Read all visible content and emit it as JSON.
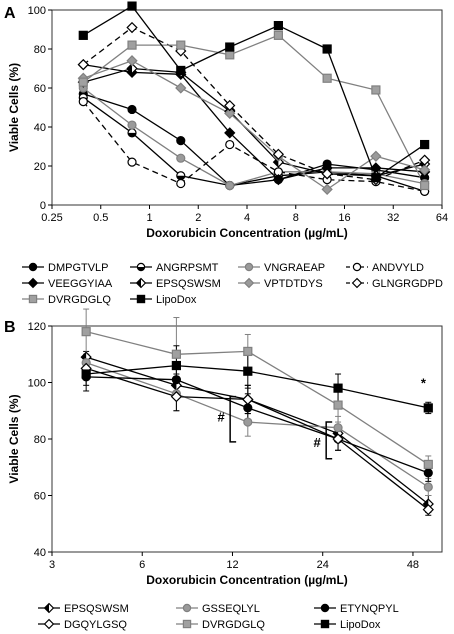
{
  "chart_data": [
    {
      "panel": "A",
      "type": "line",
      "xlabel": "Doxorubicin Concentration (µg/mL)",
      "ylabel": "Viable Cells (%)",
      "x_scale": "log2",
      "xlim": [
        0.25,
        64
      ],
      "ylim": [
        0,
        100
      ],
      "x_ticks": [
        0.25,
        0.5,
        1,
        2,
        4,
        8,
        16,
        32,
        64
      ],
      "x_tick_labels": [
        "0.25",
        "0.5",
        "1",
        "2",
        "4",
        "8",
        "16",
        "32",
        "64"
      ],
      "y_ticks": [
        0,
        20,
        40,
        60,
        80,
        100
      ],
      "y_tick_labels": [
        "0",
        "20",
        "40",
        "60",
        "80",
        "100"
      ],
      "grid": false,
      "legend_position": "bottom",
      "series": [
        {
          "name": "DMPGTVLP",
          "color": "#000000",
          "marker": "circle",
          "fill": "#000000",
          "dash": false,
          "x": [
            0.39,
            0.78,
            1.56,
            3.13,
            6.25,
            12.5,
            25,
            50
          ],
          "y": [
            57,
            49,
            33,
            10,
            13,
            21,
            18,
            14
          ]
        },
        {
          "name": "ANGRPSMT",
          "color": "#000000",
          "marker": "half",
          "fill": "#000000",
          "dash": false,
          "x": [
            0.39,
            0.78,
            1.56,
            3.13,
            6.25,
            12.5,
            25,
            50
          ],
          "y": [
            55,
            37,
            15,
            10,
            15,
            17,
            15,
            7
          ]
        },
        {
          "name": "VNGRAEAP",
          "color": "#808080",
          "marker": "circle",
          "fill": "#9a9a9a",
          "dash": false,
          "x": [
            0.39,
            0.78,
            1.56,
            3.13,
            6.25,
            12.5,
            25,
            50
          ],
          "y": [
            60,
            41,
            24,
            10,
            17,
            17,
            16,
            11
          ]
        },
        {
          "name": "ANDVYLD",
          "color": "#000000",
          "marker": "circle",
          "fill": "#ffffff",
          "dash": true,
          "x": [
            0.39,
            0.78,
            1.56,
            3.13,
            6.25,
            12.5,
            25,
            50
          ],
          "y": [
            53,
            22,
            11,
            31,
            17,
            13,
            12,
            7
          ]
        },
        {
          "name": "VEEGGYIAA",
          "color": "#000000",
          "marker": "diamond",
          "fill": "#000000",
          "dash": false,
          "x": [
            0.39,
            0.78,
            1.56,
            3.13,
            6.25,
            12.5,
            25,
            50
          ],
          "y": [
            72,
            68,
            67,
            37,
            13,
            19,
            19,
            17
          ]
        },
        {
          "name": "EPSQSWSM",
          "color": "#000000",
          "marker": "diamond-half",
          "fill": "#000000",
          "dash": false,
          "x": [
            0.39,
            0.78,
            1.56,
            3.13,
            6.25,
            12.5,
            25,
            50
          ],
          "y": [
            63,
            70,
            68,
            48,
            22,
            16,
            15,
            21
          ]
        },
        {
          "name": "VPTDTDYS",
          "color": "#808080",
          "marker": "diamond",
          "fill": "#9a9a9a",
          "dash": false,
          "x": [
            0.39,
            0.78,
            1.56,
            3.13,
            6.25,
            12.5,
            25,
            50
          ],
          "y": [
            65,
            74,
            60,
            47,
            25,
            8,
            25,
            18
          ]
        },
        {
          "name": "GLNGRGDPD",
          "color": "#000000",
          "marker": "diamond",
          "fill": "#ffffff",
          "dash": true,
          "x": [
            0.39,
            0.78,
            1.56,
            3.13,
            6.25,
            12.5,
            25,
            50
          ],
          "y": [
            72,
            91,
            79,
            51,
            26,
            16,
            13,
            23
          ]
        },
        {
          "name": "DVRGDGLQ",
          "color": "#808080",
          "marker": "square",
          "fill": "#a0a0a0",
          "dash": false,
          "x": [
            0.39,
            0.78,
            1.56,
            3.13,
            6.25,
            12.5,
            25,
            50
          ],
          "y": [
            63,
            82,
            82,
            77,
            87,
            65,
            59,
            10
          ]
        },
        {
          "name": "LipoDox",
          "color": "#000000",
          "marker": "square",
          "fill": "#000000",
          "dash": false,
          "x": [
            0.39,
            0.78,
            1.56,
            3.13,
            6.25,
            12.5,
            25,
            50
          ],
          "y": [
            87,
            102,
            69,
            81,
            92,
            80,
            14,
            31
          ]
        }
      ]
    },
    {
      "panel": "B",
      "type": "line",
      "xlabel": "Doxorubicin Concentration (µg/mL)",
      "ylabel": "Viable Cells (%)",
      "x_scale": "log2",
      "xlim": [
        3,
        60
      ],
      "ylim": [
        40,
        120
      ],
      "x_ticks": [
        3,
        6,
        12,
        24,
        48
      ],
      "x_tick_labels": [
        "3",
        "6",
        "12",
        "24",
        "48"
      ],
      "y_ticks": [
        40,
        60,
        80,
        100,
        120
      ],
      "y_tick_labels": [
        "40",
        "60",
        "80",
        "100",
        "120"
      ],
      "grid": false,
      "legend_position": "bottom",
      "annotations": [
        {
          "text": "#",
          "x": 11,
          "y": 88,
          "bracket_y": [
            79,
            95
          ]
        },
        {
          "text": "#",
          "x": 23,
          "y": 79,
          "bracket_y": [
            73,
            86
          ]
        },
        {
          "text": "*",
          "x": 52,
          "y": 100
        }
      ],
      "series": [
        {
          "name": "EPSQSWSM",
          "color": "#000000",
          "marker": "diamond-half",
          "fill": "#000000",
          "dash": false,
          "x": [
            3.9,
            7.8,
            13.5,
            27,
            54
          ],
          "y": [
            109,
            99,
            94,
            82,
            57
          ],
          "err": [
            2,
            4,
            5,
            3,
            3
          ]
        },
        {
          "name": "GSSEQLYL",
          "color": "#808080",
          "marker": "circle",
          "fill": "#9a9a9a",
          "dash": false,
          "x": [
            3.9,
            7.8,
            13.5,
            27,
            54
          ],
          "y": [
            107,
            96,
            86,
            84,
            63
          ],
          "err": [
            3,
            6,
            5,
            4,
            3
          ]
        },
        {
          "name": "ETYNQPYL",
          "color": "#000000",
          "marker": "circle",
          "fill": "#000000",
          "dash": false,
          "x": [
            3.9,
            7.8,
            13.5,
            27,
            54
          ],
          "y": [
            102,
            101,
            91,
            80,
            68
          ],
          "err": [
            3,
            5,
            5,
            4,
            3
          ]
        },
        {
          "name": "DGQYLGSQ",
          "color": "#000000",
          "marker": "diamond",
          "fill": "#ffffff",
          "dash": false,
          "x": [
            3.9,
            7.8,
            13.5,
            27,
            54
          ],
          "y": [
            105,
            95,
            94,
            80,
            55
          ],
          "err": [
            4,
            5,
            5,
            4,
            2
          ]
        },
        {
          "name": "DVRGDGLQ",
          "color": "#808080",
          "marker": "square",
          "fill": "#a0a0a0",
          "dash": false,
          "x": [
            3.9,
            7.8,
            13.5,
            27,
            54
          ],
          "y": [
            118,
            110,
            111,
            92,
            71
          ],
          "err": [
            8,
            13,
            6,
            6,
            3
          ]
        },
        {
          "name": "LipoDox",
          "color": "#000000",
          "marker": "square",
          "fill": "#000000",
          "dash": false,
          "x": [
            3.9,
            7.8,
            13.5,
            27,
            54
          ],
          "y": [
            103,
            106,
            104,
            98,
            91
          ],
          "err": [
            6,
            7,
            6,
            5,
            2
          ]
        }
      ]
    }
  ],
  "panels": {
    "a_label": "A",
    "b_label": "B"
  }
}
